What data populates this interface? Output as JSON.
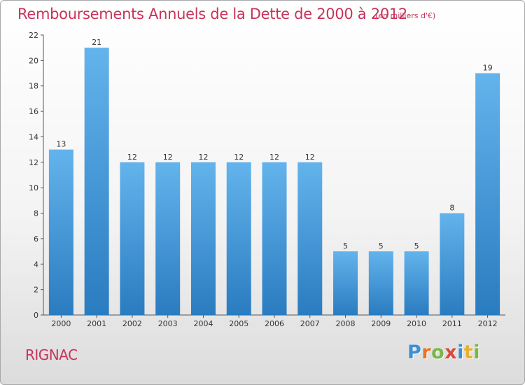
{
  "header": {
    "title": "Remboursements Annuels de la Dette de 2000 à 2012",
    "unit": "(en milliers d'€)"
  },
  "footer": {
    "commune": "RIGNAC",
    "logo_letters": [
      "P",
      "r",
      "o",
      "x",
      "i",
      "t",
      "i"
    ],
    "logo_colors": [
      "#3b8fd4",
      "#e8732a",
      "#7ab648",
      "#d94a3c",
      "#3b8fd4",
      "#e8b030",
      "#7ab648"
    ]
  },
  "colors": {
    "accent": "#c8335a",
    "bar_light": "#63b3ec",
    "bar_dark": "#2a7cc0"
  },
  "chart_data": {
    "type": "bar",
    "title": "Remboursements Annuels de la Dette de 2000 à 2012",
    "subtitle": "(en milliers d'€)",
    "categories": [
      "2000",
      "2001",
      "2002",
      "2003",
      "2004",
      "2005",
      "2006",
      "2007",
      "2008",
      "2009",
      "2010",
      "2011",
      "2012"
    ],
    "values": [
      13,
      21,
      12,
      12,
      12,
      12,
      12,
      12,
      5,
      5,
      5,
      8,
      19
    ],
    "ylim": [
      0,
      22
    ],
    "yticks": [
      0,
      2,
      4,
      6,
      8,
      10,
      12,
      14,
      16,
      18,
      20,
      22
    ],
    "grid": false,
    "legend": "none"
  }
}
